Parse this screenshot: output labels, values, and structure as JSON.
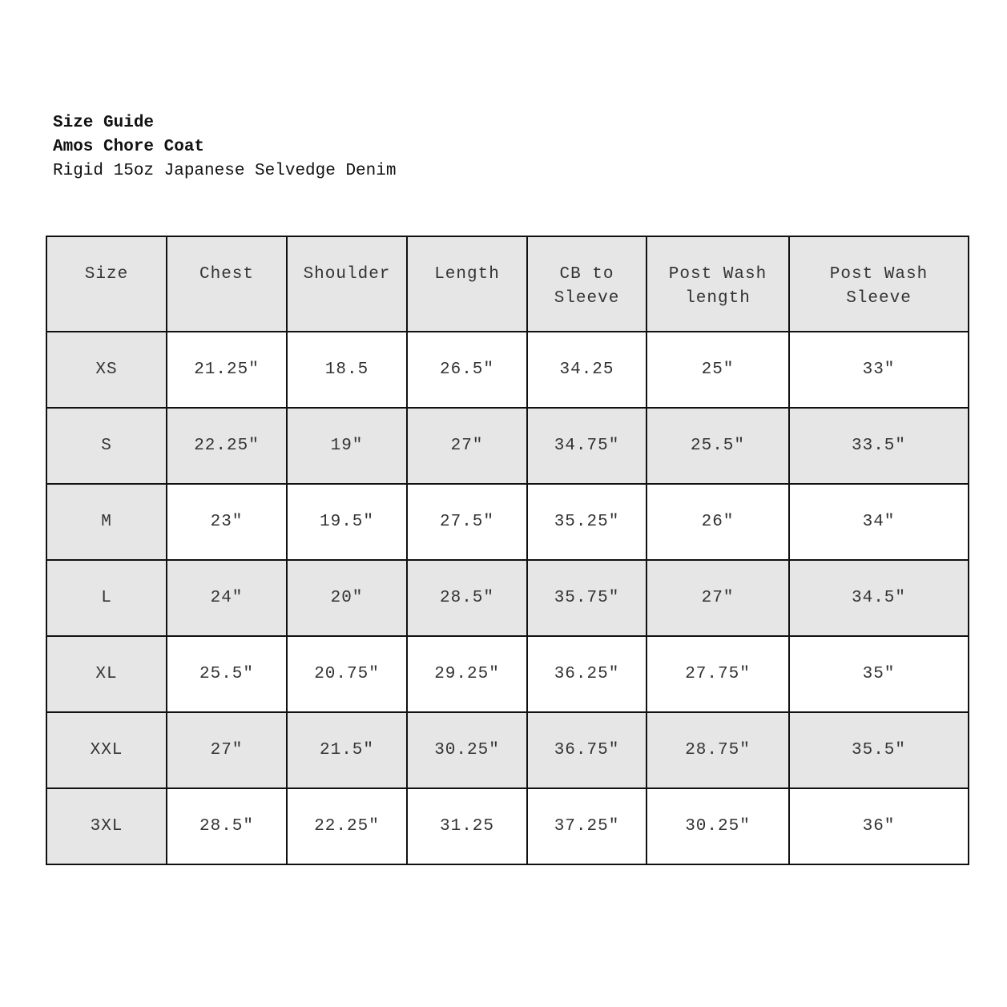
{
  "title_lines": [
    "Size Guide",
    "Amos Chore Coat",
    "Rigid 15oz Japanese Selvedge Denim"
  ],
  "colors": {
    "header_fill": "#e6e6e6",
    "border": "#111111",
    "alt_row_fill": "#e6e6e6"
  },
  "table": {
    "headers": [
      "Size",
      "Chest",
      "Shoulder",
      "Length",
      "CB to Sleeve",
      "Post Wash length",
      "Post Wash Sleeve"
    ],
    "rows": [
      [
        "XS",
        "21.25″",
        "18.5",
        "26.5″",
        "34.25",
        "25″",
        "33″"
      ],
      [
        "S",
        "22.25″",
        "19″",
        "27″",
        "34.75″",
        "25.5″",
        "33.5″"
      ],
      [
        "M",
        "23″",
        "19.5″",
        "27.5″",
        "35.25″",
        "26″",
        "34″"
      ],
      [
        "L",
        "24″",
        "20″",
        "28.5″",
        "35.75″",
        "27″",
        "34.5″"
      ],
      [
        "XL",
        "25.5″",
        "20.75″",
        "29.25″",
        "36.25″",
        "27.75″",
        "35″"
      ],
      [
        "XXL",
        "27″",
        "21.5″",
        "30.25″",
        "36.75″",
        "28.75″",
        "35.5″"
      ],
      [
        "3XL",
        "28.5″",
        "22.25″",
        "31.25",
        "37.25″",
        "30.25″",
        "36″"
      ]
    ]
  }
}
